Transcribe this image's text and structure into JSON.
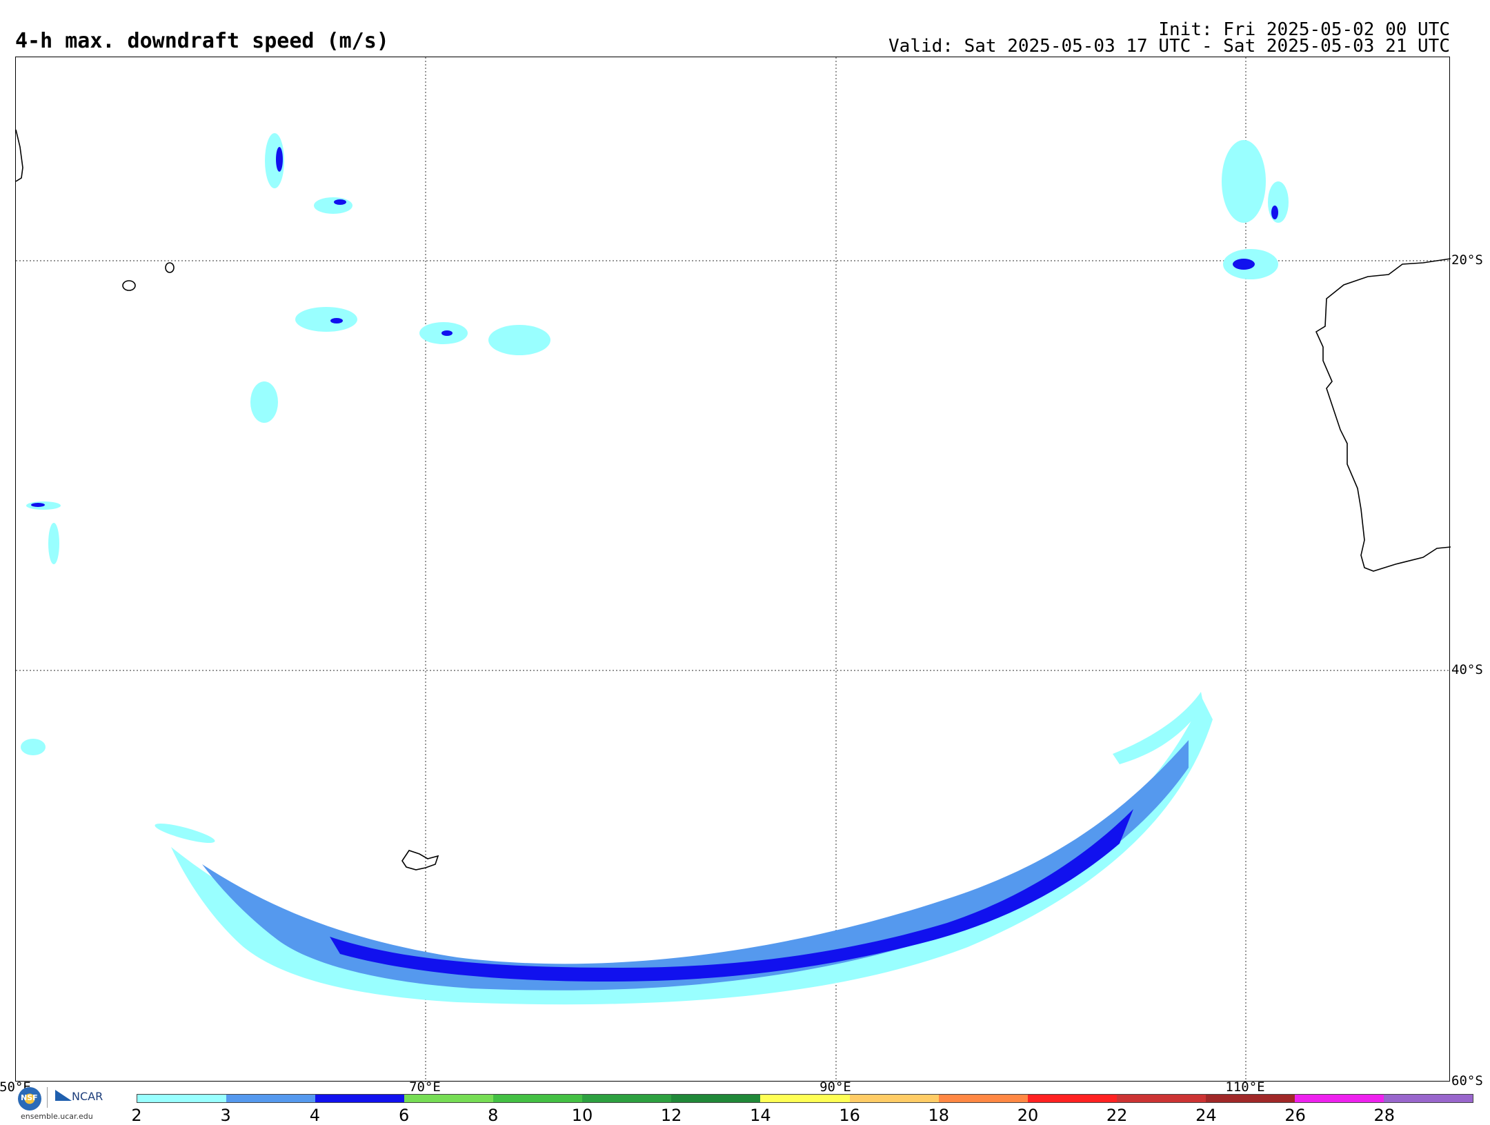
{
  "header": {
    "title": "4-h max. downdraft speed (m/s)",
    "init": "Init: Fri 2025-05-02 00 UTC",
    "valid": "Valid: Sat 2025-05-03 17 UTC - Sat 2025-05-03 21 UTC"
  },
  "map": {
    "region": "Southern Indian Ocean",
    "lat_labels": [
      "20°S",
      "40°S",
      "60°S"
    ],
    "lon_labels": [
      "50°E",
      "70°E",
      "90°E",
      "110°E"
    ],
    "features": [
      "Madagascar east coast",
      "Mascarene Islands",
      "Kerguelen Islands",
      "Western Australia coast"
    ],
    "gridlines": "dotted"
  },
  "colorbar": {
    "ticks": [
      "2",
      "3",
      "4",
      "6",
      "8",
      "10",
      "12",
      "14",
      "16",
      "18",
      "20",
      "22",
      "24",
      "26",
      "28"
    ],
    "colors": [
      "#99ffff",
      "#5599ee",
      "#1111ee",
      "#77dd55",
      "#44c044",
      "#2da040",
      "#208838",
      "#ffff55",
      "#ffcc66",
      "#ff8844",
      "#ff2222",
      "#cc3333",
      "#a02828",
      "#ee22ee",
      "#9966cc"
    ]
  },
  "logo": {
    "nsf": "NSF",
    "ncar": "NCAR",
    "url": "ensemble.ucar.edu"
  }
}
